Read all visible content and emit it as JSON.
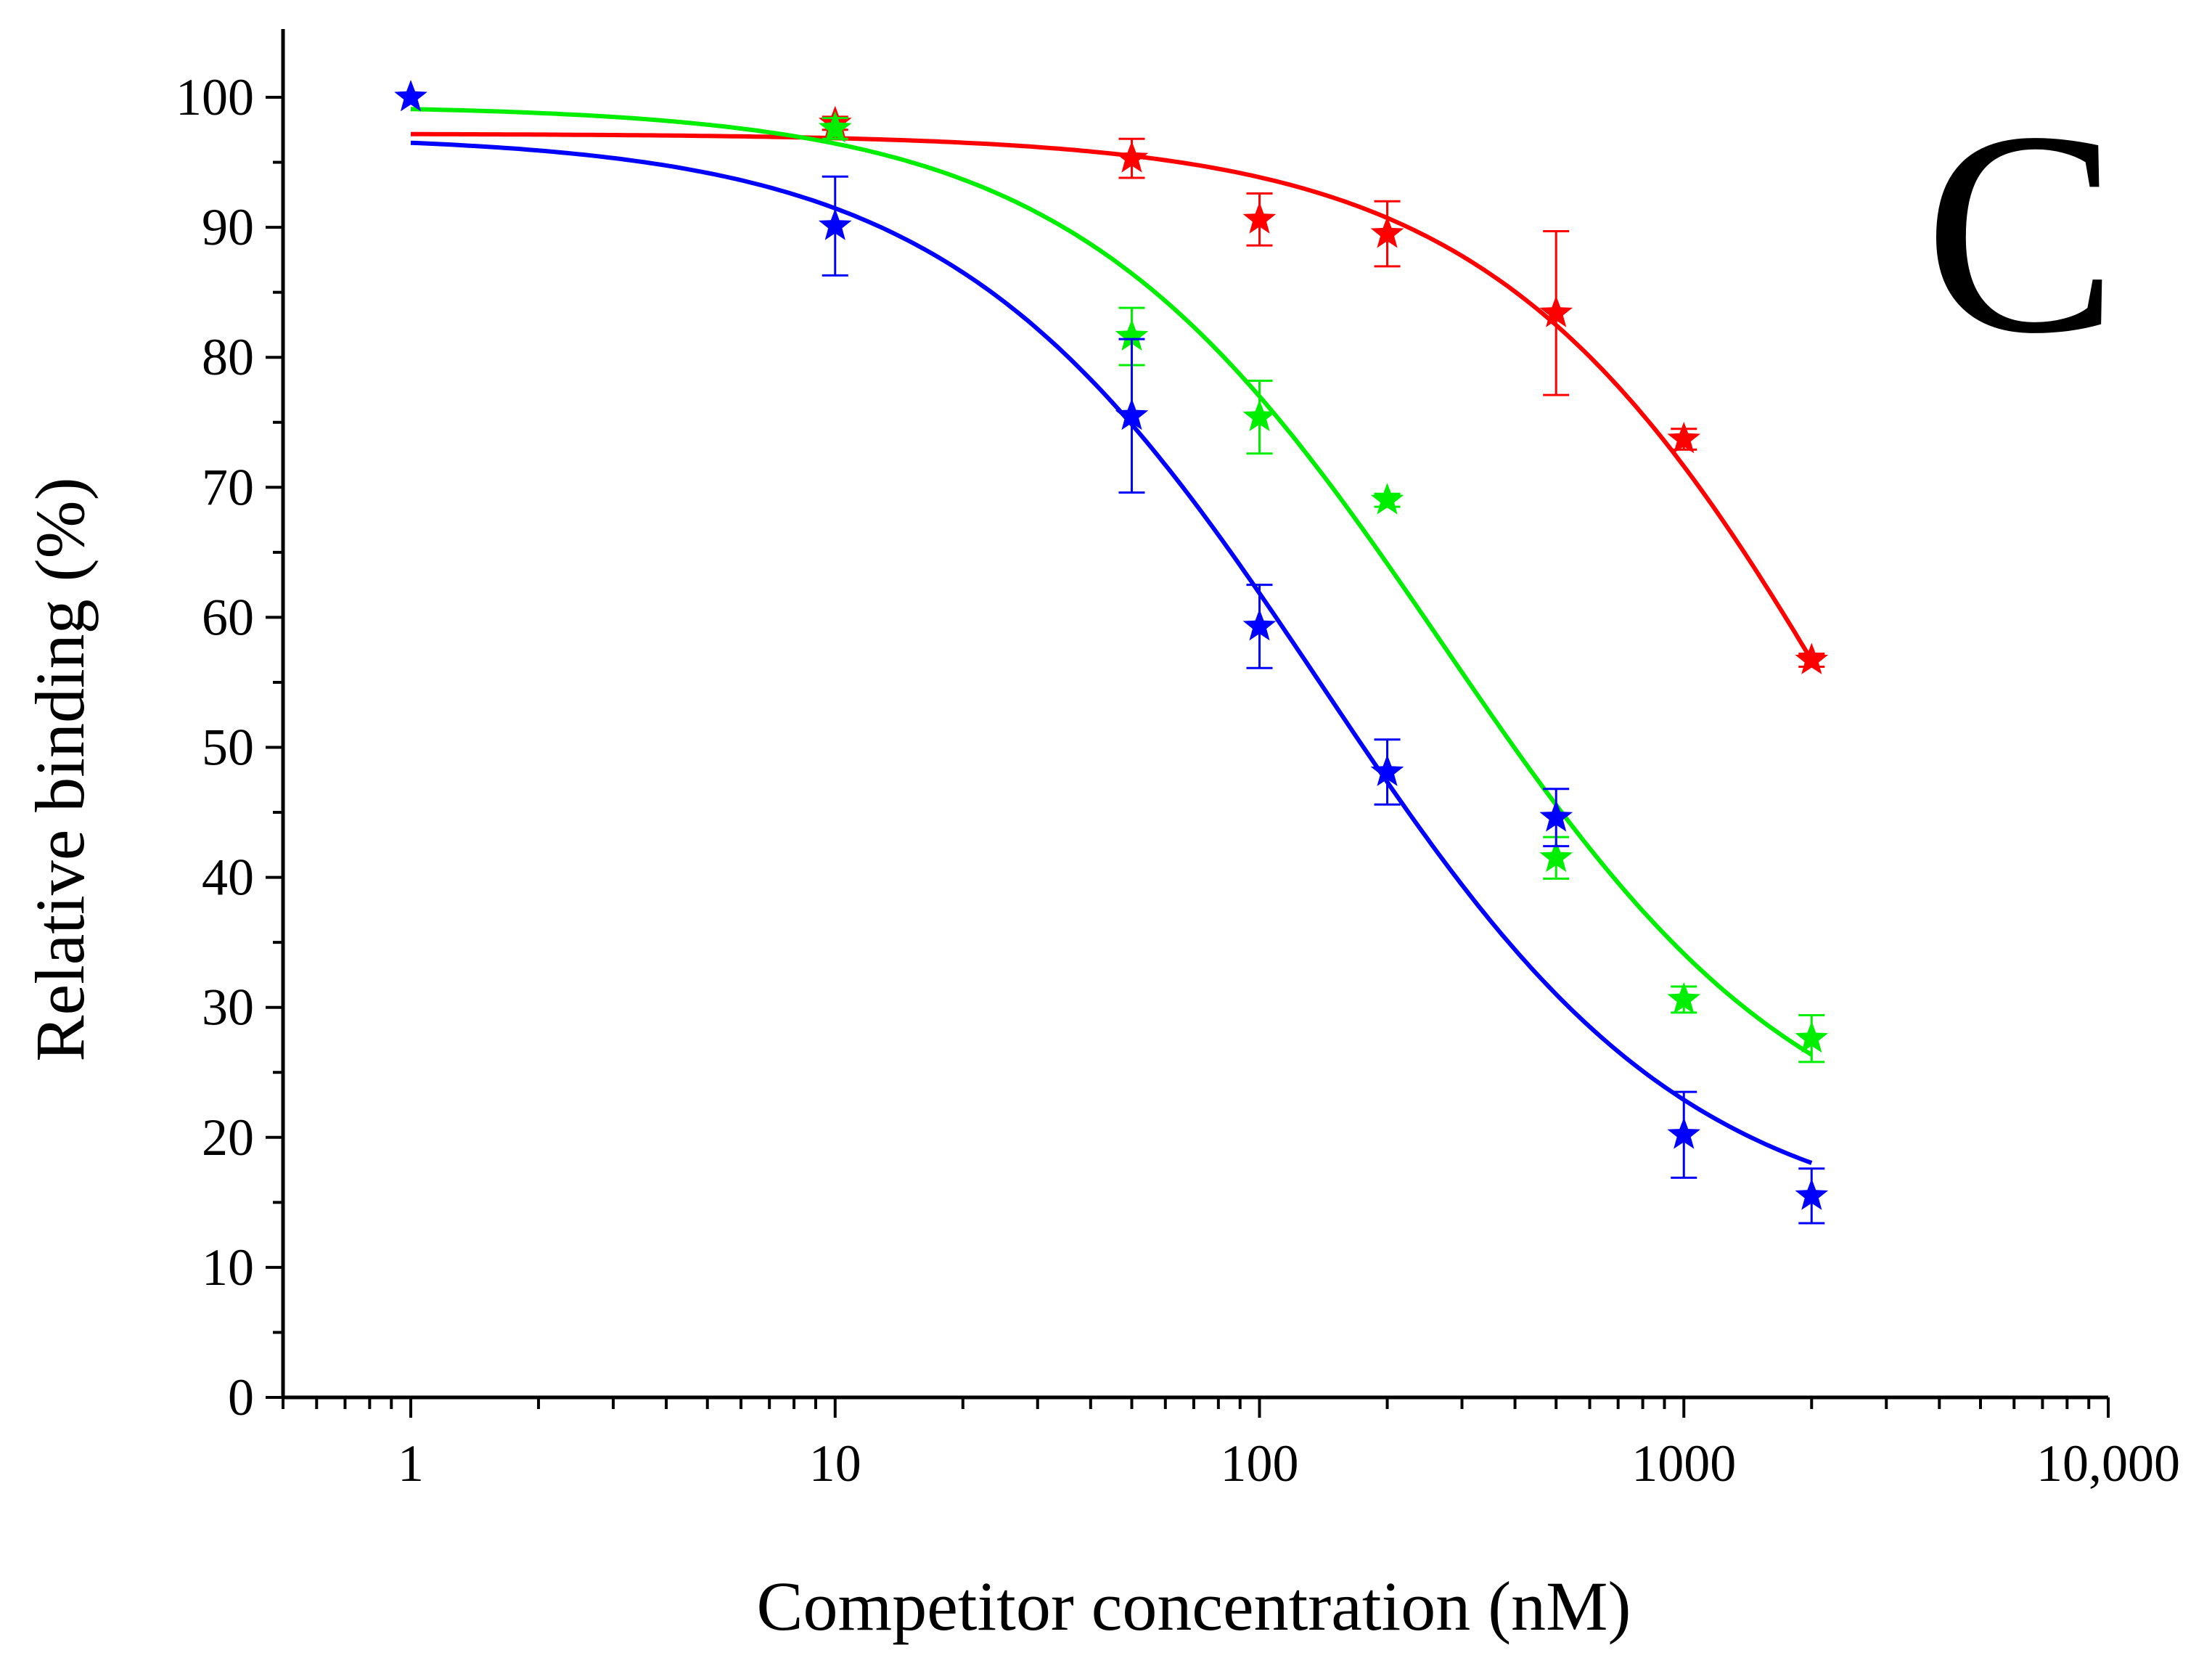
{
  "chart_data": {
    "type": "scatter",
    "title": "",
    "panel_label": "C",
    "xlabel": "Competitor concentration (nM)",
    "ylabel": "Relative binding (%)",
    "xscale": "log",
    "xlim": [
      0.5,
      10000
    ],
    "ylim": [
      0,
      105
    ],
    "xticks": [
      1,
      10,
      100,
      1000,
      10000
    ],
    "xtick_labels": [
      "1",
      "10",
      "100",
      "1000",
      "10,000"
    ],
    "yticks": [
      0,
      10,
      20,
      30,
      40,
      50,
      60,
      70,
      80,
      90,
      100
    ],
    "ytick_labels": [
      "0",
      "10",
      "20",
      "30",
      "40",
      "50",
      "60",
      "70",
      "80",
      "90",
      "100"
    ],
    "grid": false,
    "series": [
      {
        "name": "red",
        "color": "#ff0000",
        "x": [
          10,
          50,
          100,
          200,
          500,
          1000,
          2000
        ],
        "y": [
          98,
          95.3,
          90.6,
          89.5,
          83.4,
          73.7,
          56.7
        ],
        "err": [
          0.5,
          1.5,
          2.0,
          2.5,
          6.3,
          0.8,
          0.5
        ],
        "fit": {
          "top": 97.2,
          "bottom": 0,
          "ec50": 2800,
          "hill": 1.0,
          "x_range": [
            1,
            2000
          ]
        }
      },
      {
        "name": "green",
        "color": "#00ee00",
        "x": [
          10,
          50,
          100,
          200,
          500,
          1000,
          2000
        ],
        "y": [
          97.6,
          81.6,
          75.4,
          69.0,
          41.5,
          30.6,
          27.6
        ],
        "err": [
          0.8,
          2.2,
          2.8,
          0.5,
          1.6,
          1.0,
          1.8
        ],
        "fit": {
          "top": 99.4,
          "bottom": 16.5,
          "ec50": 270,
          "hill": 1.0,
          "x_range": [
            1,
            2000
          ]
        }
      },
      {
        "name": "blue",
        "color": "#0000ff",
        "x": [
          1,
          10,
          50,
          100,
          200,
          500,
          1000,
          2000
        ],
        "y": [
          100,
          90.1,
          75.5,
          59.3,
          48.1,
          44.6,
          20.2,
          15.5
        ],
        "err": [
          0,
          3.8,
          5.9,
          3.2,
          2.5,
          2.2,
          3.3,
          2.1
        ],
        "fit": {
          "top": 97.1,
          "bottom": 12.5,
          "ec50": 140,
          "hill": 1.0,
          "x_range": [
            1,
            2000
          ]
        }
      }
    ]
  }
}
